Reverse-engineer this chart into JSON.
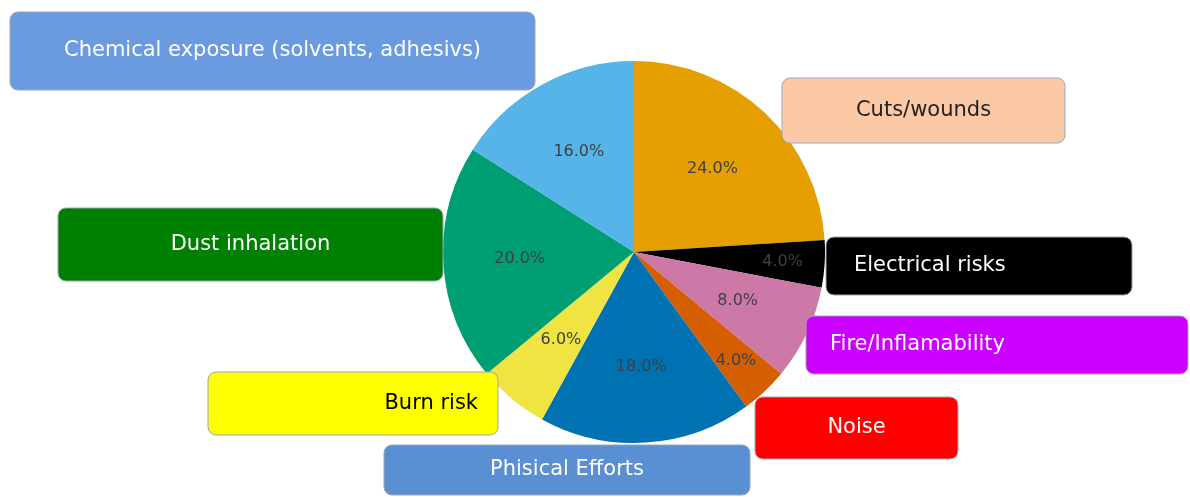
{
  "chart_data": {
    "type": "pie",
    "categories": [
      "Cuts/wounds",
      "Electrical risks",
      "Fire/Inflamability",
      "Noise",
      "Phisical Efforts",
      "Burn risk",
      "Dust inhalation",
      "Chemical exposure (solvents, adhesivs)"
    ],
    "values": [
      24,
      4,
      8,
      4,
      18,
      6,
      20,
      16
    ],
    "colors": [
      "#e69f00",
      "#000000",
      "#cc79a7",
      "#d55e00",
      "#0072b2",
      "#f0e442",
      "#009e73",
      "#56b4e9"
    ],
    "value_labels": [
      "24.0%",
      "4.0%",
      "8.0%",
      "4.0%",
      "18.0%",
      "6.0%",
      "20.0%",
      "16.0%"
    ],
    "legend": false
  }
}
